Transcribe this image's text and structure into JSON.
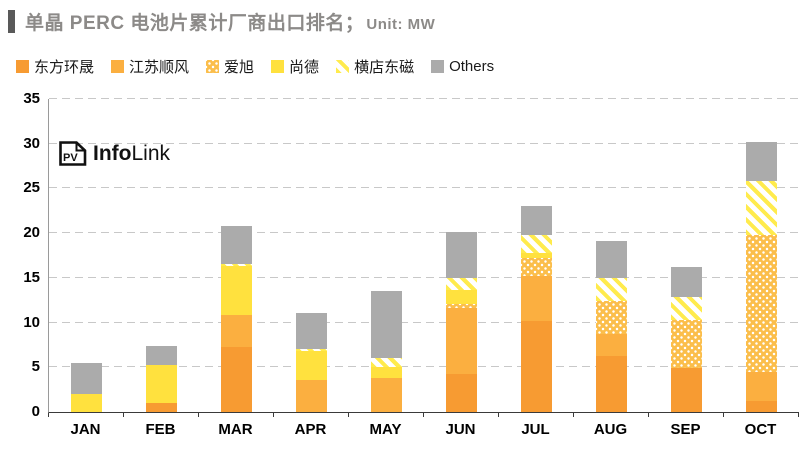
{
  "header": {
    "title": "单晶 PERC 电池片累计厂商出口排名；",
    "unit_label": "Unit: MW"
  },
  "logo": {
    "badge_text": "PV",
    "brand_bold": "Info",
    "brand_light": "Link"
  },
  "colors": {
    "title_text": "#8C8A88",
    "title_accent_bar": "#595959",
    "gridline": "#C8C8C8",
    "axis_text": "#000000"
  },
  "chart_data": {
    "type": "bar",
    "stacked": true,
    "title": "单晶 PERC 电池片累计厂商出口排名",
    "unit": "MW",
    "categories": [
      "JAN",
      "FEB",
      "MAR",
      "APR",
      "MAY",
      "JUN",
      "JUL",
      "AUG",
      "SEP",
      "OCT"
    ],
    "series": [
      {
        "name": "东方环晟",
        "key": "dongfang-huansheng",
        "pattern": "solid",
        "color": "#F79B32",
        "values": [
          0,
          1.0,
          7.3,
          0,
          0,
          4.2,
          10.2,
          6.3,
          4.9,
          1.2
        ]
      },
      {
        "name": "江苏顺风",
        "key": "jiangsu-shunfeng",
        "pattern": "solid",
        "color": "#FBAF40",
        "values": [
          0,
          0,
          3.5,
          3.6,
          3.75,
          7.4,
          5.0,
          2.45,
          0,
          3.3
        ]
      },
      {
        "name": "爱旭",
        "key": "aixu",
        "pattern": "dots",
        "color": "#FBBE4B",
        "values": [
          0,
          0,
          0,
          0,
          0,
          0.5,
          2.0,
          3.65,
          5.4,
          15.3
        ]
      },
      {
        "name": "尚德",
        "key": "shangde",
        "pattern": "solid",
        "color": "#FFE13E",
        "values": [
          2.0,
          4.3,
          5.5,
          3.2,
          1.25,
          1.5,
          0.6,
          0,
          0,
          0
        ]
      },
      {
        "name": "横店东磁",
        "key": "hengdian-dongci",
        "pattern": "stripes",
        "color": "#FFEB4D",
        "values": [
          0,
          0,
          0.3,
          0.2,
          1.0,
          1.4,
          2.0,
          2.6,
          2.6,
          6.0
        ]
      },
      {
        "name": "Others",
        "key": "others",
        "pattern": "solid",
        "color": "#ABABAB",
        "values": [
          3.5,
          2.1,
          4.2,
          4.1,
          7.5,
          5.1,
          3.2,
          4.1,
          3.3,
          4.4
        ]
      }
    ],
    "ylim": [
      0,
      35
    ],
    "yticks": [
      0,
      5,
      10,
      15,
      20,
      25,
      30,
      35
    ],
    "grid": "horizontal-dashed",
    "legend_position": "top"
  }
}
